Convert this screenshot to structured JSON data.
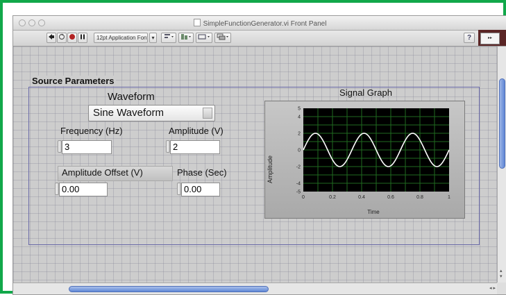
{
  "window": {
    "title": "SimpleFunctionGenerator.vi Front Panel"
  },
  "toolbar": {
    "font_menu": "12pt Application Font",
    "help_label": "?"
  },
  "panel": {
    "label": "Source Parameters",
    "waveform_label": "Waveform",
    "waveform_value": "Sine Waveform",
    "frequency_label": "Frequency (Hz)",
    "frequency_value": "3",
    "amplitude_label": "Amplitude (V)",
    "amplitude_value": "2",
    "offset_label": "Amplitude Offset (V)",
    "offset_value": "0.00",
    "phase_label": "Phase (Sec)",
    "phase_value": "0.00"
  },
  "graph": {
    "title": "Signal Graph",
    "x_label": "Time",
    "y_label": "Amplitude",
    "x_ticks": [
      "0",
      "0.2",
      "0.4",
      "0.6",
      "0.8",
      "1"
    ],
    "y_ticks": [
      "5",
      "4",
      "2",
      "0",
      "-2",
      "-4",
      "-5"
    ]
  },
  "chart_data": {
    "type": "line",
    "title": "Signal Graph",
    "xlabel": "Time",
    "ylabel": "Amplitude",
    "xlim": [
      0,
      1
    ],
    "ylim": [
      -5,
      5
    ],
    "grid": true,
    "series": [
      {
        "frequency": 3,
        "amplitude": 2,
        "offset": 0,
        "phase": 0
      }
    ],
    "colors": {
      "plot_bg": "#000000",
      "grid": "#1f6a1f",
      "trace": "#ffffff"
    }
  }
}
